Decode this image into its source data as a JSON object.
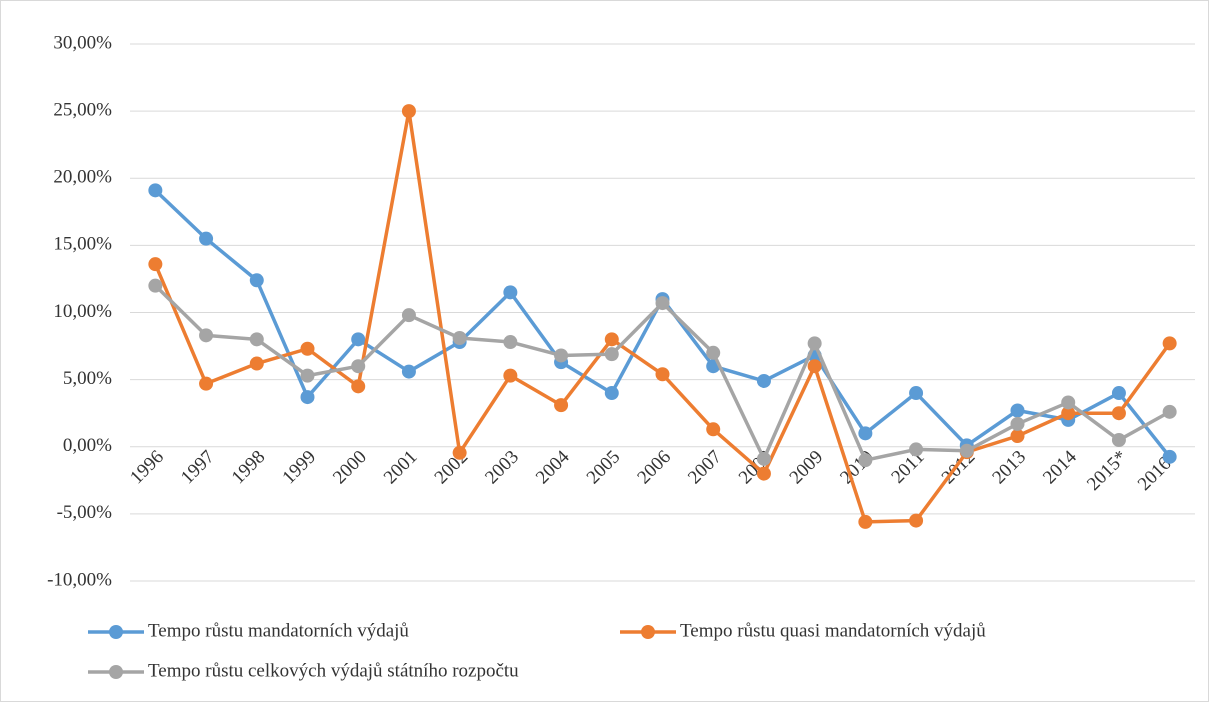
{
  "chart_data": {
    "type": "line",
    "categories": [
      "1996",
      "1997",
      "1998",
      "1999",
      "2000",
      "2001",
      "2002",
      "2003",
      "2004",
      "2005",
      "2006",
      "2007",
      "2008",
      "2009",
      "2010",
      "2011",
      "2012",
      "2013",
      "2014",
      "2015*",
      "2016*"
    ],
    "series": [
      {
        "name": "Tempo růstu mandatorních výdajů",
        "color": "#5b9bd5",
        "values": [
          19.1,
          15.5,
          12.4,
          3.7,
          8.0,
          5.6,
          7.8,
          11.5,
          6.3,
          4.0,
          11.0,
          6.0,
          4.9,
          6.8,
          1.0,
          4.0,
          0.1,
          2.7,
          2.0,
          4.0,
          -0.75
        ]
      },
      {
        "name": "Tempo růstu quasi mandatorních výdajů",
        "color": "#ed7d31",
        "values": [
          13.6,
          4.7,
          6.2,
          7.3,
          4.5,
          25.0,
          -0.45,
          5.3,
          3.1,
          8.0,
          5.4,
          1.3,
          -2.0,
          6.0,
          -5.6,
          -5.5,
          -0.4,
          0.8,
          2.5,
          2.5,
          7.7
        ]
      },
      {
        "name": "Tempo růstu celkových výdajů státního rozpočtu",
        "color": "#a5a5a5",
        "values": [
          12.0,
          8.3,
          8.0,
          5.3,
          6.0,
          9.8,
          8.1,
          7.8,
          6.8,
          6.9,
          10.7,
          7.0,
          -0.9,
          7.7,
          -1.0,
          -0.2,
          -0.3,
          1.7,
          3.3,
          0.5,
          2.6
        ]
      }
    ],
    "ylim": [
      -10,
      30
    ],
    "yticks": [
      {
        "value": -10,
        "label": "-10,00%"
      },
      {
        "value": -5,
        "label": "-5,00%"
      },
      {
        "value": 0,
        "label": "0,00%"
      },
      {
        "value": 5,
        "label": "5,00%"
      },
      {
        "value": 10,
        "label": "10,00%"
      },
      {
        "value": 15,
        "label": "15,00%"
      },
      {
        "value": 20,
        "label": "20,00%"
      },
      {
        "value": 25,
        "label": "25,00%"
      },
      {
        "value": 30,
        "label": "30,00%"
      }
    ],
    "grid": true
  }
}
